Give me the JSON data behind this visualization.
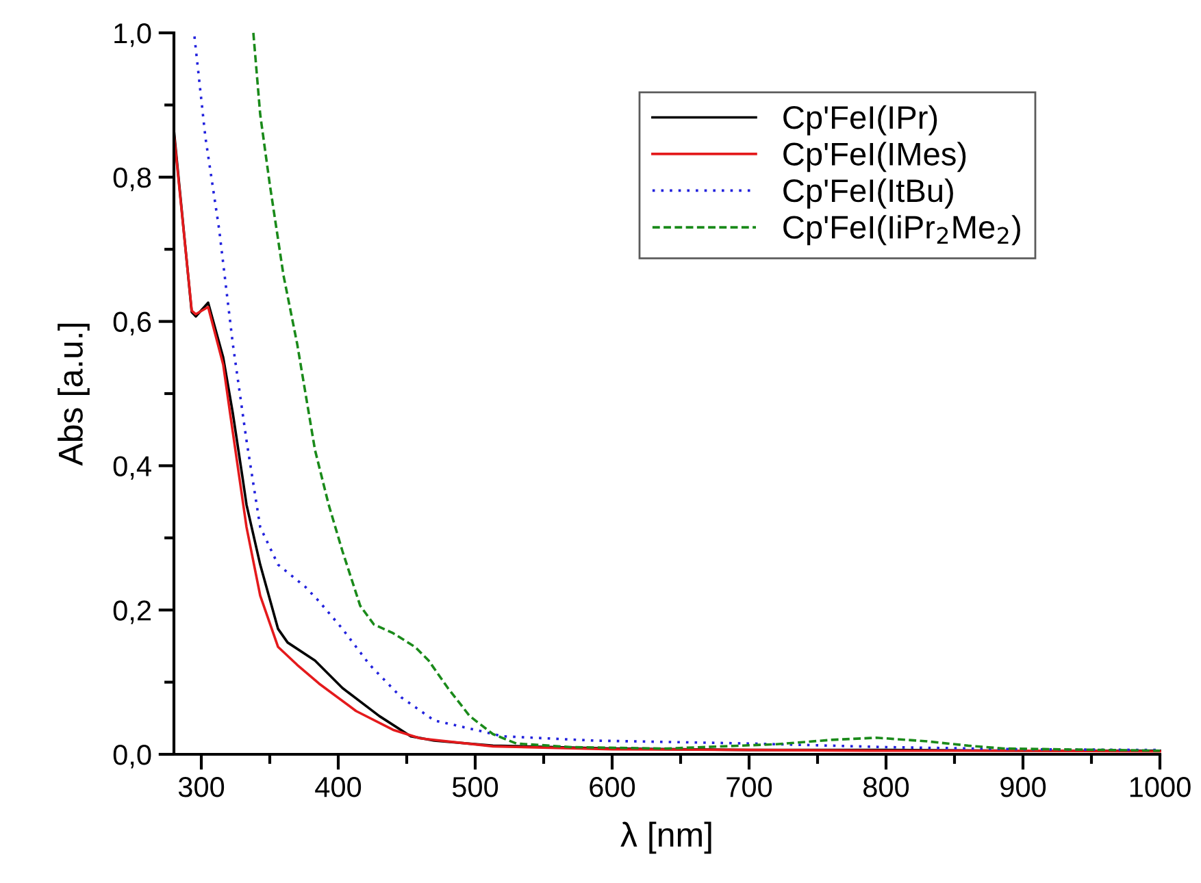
{
  "chart_data": {
    "type": "line",
    "xlabel": "λ [nm]",
    "ylabel": "Abs [a.u.]",
    "xlim": [
      280,
      1000
    ],
    "ylim": [
      0,
      1.0
    ],
    "xticks": [
      300,
      {
        "value": 350,
        "label": null
      },
      400,
      {
        "value": 450,
        "label": null
      },
      500,
      {
        "value": 550,
        "label": null
      },
      600,
      {
        "value": 650,
        "label": null
      },
      700,
      {
        "value": 750,
        "label": null
      },
      800,
      {
        "value": 850,
        "label": null
      },
      900,
      {
        "value": 950,
        "label": null
      },
      1000
    ],
    "yticks": [
      {
        "value": 0,
        "label": "0,0"
      },
      {
        "value": 0.1,
        "label": null
      },
      {
        "value": 0.2,
        "label": "0,2"
      },
      {
        "value": 0.3,
        "label": null
      },
      {
        "value": 0.4,
        "label": "0,4"
      },
      {
        "value": 0.5,
        "label": null
      },
      {
        "value": 0.6,
        "label": "0,6"
      },
      {
        "value": 0.7,
        "label": null
      },
      {
        "value": 0.8,
        "label": "0,8"
      },
      {
        "value": 0.9,
        "label": null
      },
      {
        "value": 1.0,
        "label": "1,0"
      }
    ],
    "grid": false,
    "legend": "top right",
    "marker": "none",
    "series": [
      {
        "name": "Cp'FeI(IPr)",
        "color": "#000000",
        "line_style": "solid",
        "x": [
          280,
          293,
          296,
          305,
          316,
          323,
          330,
          333,
          343,
          356,
          363,
          383,
          403,
          430,
          453,
          470,
          513,
          600,
          700,
          800,
          900,
          1000
        ],
        "values": [
          0.865,
          0.613,
          0.607,
          0.626,
          0.55,
          0.473,
          0.385,
          0.346,
          0.263,
          0.174,
          0.155,
          0.13,
          0.092,
          0.053,
          0.025,
          0.019,
          0.012,
          0.008,
          0.006,
          0.006,
          0.005,
          0.005
        ]
      },
      {
        "name": "Cp'FeI(IMes)",
        "color": "#e41a1c",
        "line_style": "solid",
        "x": [
          280,
          293,
          296,
          305,
          316,
          321,
          333,
          343,
          356,
          370,
          386,
          413,
          440,
          460,
          513,
          600,
          700,
          800,
          900,
          1000
        ],
        "values": [
          0.86,
          0.615,
          0.61,
          0.62,
          0.54,
          0.473,
          0.315,
          0.22,
          0.149,
          0.124,
          0.098,
          0.06,
          0.034,
          0.022,
          0.011,
          0.007,
          0.006,
          0.005,
          0.005,
          0.004
        ]
      },
      {
        "name": "Cp'FeI(ItBu)",
        "color": "#2222dd",
        "line_style": "dotted",
        "x": [
          295,
          303,
          313,
          323,
          333,
          343,
          356,
          376,
          386,
          403,
          423,
          446,
          470,
          500,
          520,
          587,
          700,
          800,
          900,
          1000
        ],
        "values": [
          0.995,
          0.855,
          0.728,
          0.569,
          0.435,
          0.315,
          0.263,
          0.232,
          0.212,
          0.174,
          0.124,
          0.079,
          0.047,
          0.034,
          0.025,
          0.019,
          0.015,
          0.01,
          0.007,
          0.006
        ]
      },
      {
        "name": "Cp'FeI(IiPr$_{2}$Me$_{2}$)",
        "color": "#1a8a1a",
        "line_style": "dashed",
        "x": [
          338,
          343,
          350,
          360,
          370,
          383,
          393,
          403,
          416,
          426,
          440,
          456,
          466,
          480,
          496,
          513,
          530,
          570,
          640,
          720,
          760,
          793,
          830,
          860,
          886,
          1000
        ],
        "values": [
          1.0,
          0.887,
          0.79,
          0.664,
          0.569,
          0.422,
          0.346,
          0.282,
          0.206,
          0.18,
          0.168,
          0.149,
          0.13,
          0.092,
          0.053,
          0.028,
          0.015,
          0.01,
          0.008,
          0.014,
          0.02,
          0.023,
          0.018,
          0.012,
          0.008,
          0.005
        ]
      }
    ]
  }
}
